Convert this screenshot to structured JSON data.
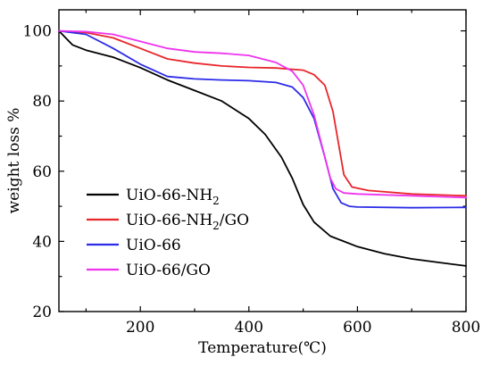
{
  "chart_data": {
    "type": "line",
    "title": "",
    "xlabel": "Temperature(℃)",
    "ylabel": "weight loss %",
    "xlim": [
      50,
      800
    ],
    "ylim": [
      20,
      106
    ],
    "x_ticks": [
      200,
      400,
      600,
      800
    ],
    "y_ticks": [
      20,
      40,
      60,
      80,
      100
    ],
    "grid": false,
    "legend_placement": "bottom-left",
    "series": [
      {
        "name": "UiO-66-NH",
        "name_sub": "2",
        "name_suffix": "",
        "color": "#000000",
        "x": [
          50,
          75,
          100,
          150,
          200,
          250,
          300,
          350,
          400,
          430,
          460,
          480,
          500,
          520,
          550,
          600,
          650,
          700,
          750,
          800
        ],
        "y": [
          100,
          96,
          94.5,
          92.5,
          89.5,
          86,
          83,
          80,
          75,
          70.5,
          64,
          58,
          50.5,
          45.5,
          41.5,
          38.5,
          36.5,
          35,
          34,
          33
        ]
      },
      {
        "name": "UiO-66-NH",
        "name_sub": "2",
        "name_suffix": "/GO",
        "color": "#e8262b",
        "x": [
          50,
          100,
          150,
          200,
          250,
          300,
          350,
          400,
          450,
          500,
          520,
          540,
          555,
          565,
          575,
          590,
          620,
          700,
          800
        ],
        "y": [
          100,
          99.5,
          98,
          95,
          92,
          90.8,
          90,
          89.6,
          89.4,
          88.8,
          87.5,
          84.5,
          77,
          68,
          59,
          55.5,
          54.5,
          53.5,
          53
        ]
      },
      {
        "name": "UiO-66",
        "name_sub": "",
        "name_suffix": "",
        "color": "#2b2be8",
        "x": [
          50,
          100,
          150,
          200,
          250,
          300,
          350,
          400,
          450,
          480,
          500,
          520,
          540,
          555,
          570,
          585,
          600,
          700,
          800
        ],
        "y": [
          100,
          99,
          95,
          90.5,
          87,
          86.3,
          86,
          85.8,
          85.3,
          84,
          81,
          75,
          64,
          55,
          51,
          50,
          49.8,
          49.6,
          49.7
        ]
      },
      {
        "name": "UiO-66/GO",
        "name_sub": "",
        "name_suffix": "",
        "color": "#ee33ee",
        "x": [
          50,
          100,
          150,
          200,
          250,
          300,
          350,
          400,
          450,
          480,
          500,
          520,
          535,
          550,
          560,
          575,
          600,
          700,
          800
        ],
        "y": [
          100,
          99.8,
          99,
          97,
          95,
          94,
          93.6,
          93,
          91,
          88.5,
          84.5,
          76,
          67,
          58,
          55,
          53.8,
          53.5,
          53,
          52.5
        ]
      }
    ]
  }
}
